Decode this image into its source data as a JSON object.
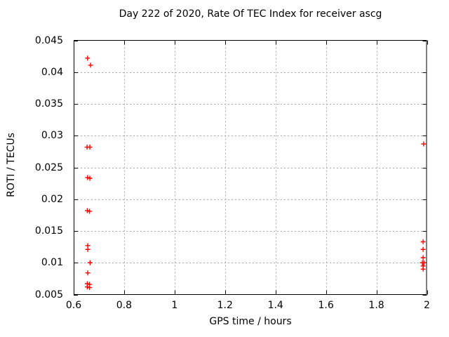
{
  "chart_data": {
    "type": "scatter",
    "title": "Day 222 of 2020, Rate Of TEC Index for receiver ascg",
    "xlabel": "GPS time / hours",
    "ylabel": "ROTI / TECUs",
    "xlim": [
      0.6,
      2
    ],
    "ylim": [
      0.005,
      0.045
    ],
    "xticks": [
      0.6,
      0.8,
      1,
      1.2,
      1.4,
      1.6,
      1.8,
      2
    ],
    "xtick_labels": [
      "0.6",
      "0.8",
      "1",
      "1.2",
      "1.4",
      "1.6",
      "1.8",
      "2"
    ],
    "yticks": [
      0.005,
      0.01,
      0.015,
      0.02,
      0.025,
      0.03,
      0.035,
      0.04,
      0.045
    ],
    "ytick_labels": [
      "0.005",
      "0.01",
      "0.015",
      "0.02",
      "0.025",
      "0.03",
      "0.035",
      "0.04",
      "0.045"
    ],
    "grid": true,
    "legend_position": "none",
    "marker": "plus",
    "marker_color": "#ff0000",
    "grid_color": "#a8a8a8",
    "axis_color": "#000000",
    "background_color": "#ffffff",
    "series": [
      {
        "name": "ROTI",
        "points": [
          [
            0.655,
            0.0422
          ],
          [
            0.667,
            0.0411
          ],
          [
            0.653,
            0.0282
          ],
          [
            0.664,
            0.0282
          ],
          [
            0.655,
            0.0234
          ],
          [
            0.664,
            0.0233
          ],
          [
            0.654,
            0.0182
          ],
          [
            0.663,
            0.0181
          ],
          [
            0.656,
            0.0127
          ],
          [
            0.656,
            0.0121
          ],
          [
            0.665,
            0.01
          ],
          [
            0.656,
            0.0084
          ],
          [
            0.654,
            0.0067
          ],
          [
            0.663,
            0.0066
          ],
          [
            0.654,
            0.0062
          ],
          [
            0.663,
            0.0061
          ],
          [
            1.987,
            0.0287
          ],
          [
            1.985,
            0.0133
          ],
          [
            1.985,
            0.0121
          ],
          [
            1.985,
            0.0108
          ],
          [
            1.982,
            0.01
          ],
          [
            1.988,
            0.01
          ],
          [
            1.985,
            0.0095
          ],
          [
            1.985,
            0.009
          ]
        ]
      }
    ]
  }
}
